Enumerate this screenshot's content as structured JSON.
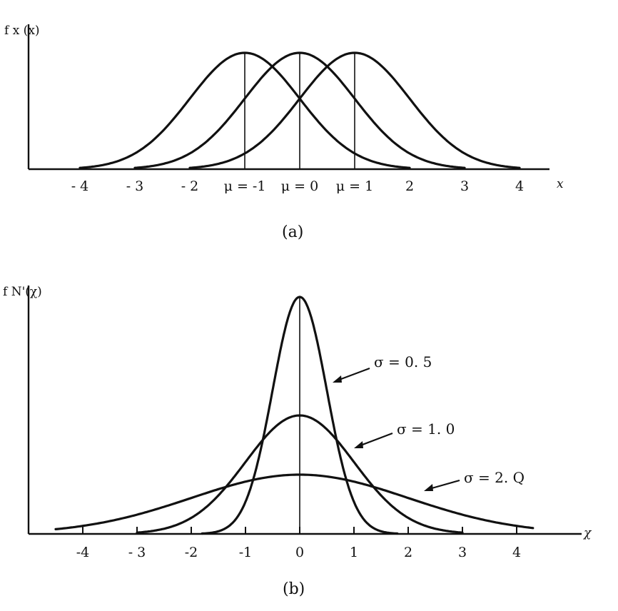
{
  "chart_data": [
    {
      "type": "line",
      "caption": "(a)",
      "ylabel": "f x (x)",
      "xlabel": "x",
      "xlim": [
        -4,
        4
      ],
      "x_tick_labels": [
        {
          "value": -4,
          "label": "- 4"
        },
        {
          "value": -3,
          "label": "- 3"
        },
        {
          "value": -2,
          "label": "- 2"
        },
        {
          "value": -1,
          "label": "μ = -1"
        },
        {
          "value": 0,
          "label": "μ = 0"
        },
        {
          "value": 1,
          "label": "μ = 1"
        },
        {
          "value": 2,
          "label": "2"
        },
        {
          "value": 3,
          "label": "3"
        },
        {
          "value": 4,
          "label": "4"
        }
      ],
      "series": [
        {
          "mu": -1,
          "sigma": 1,
          "x_range": [
            -4,
            2
          ]
        },
        {
          "mu": 0,
          "sigma": 1,
          "x_range": [
            -3,
            3
          ]
        },
        {
          "mu": 1,
          "sigma": 1,
          "x_range": [
            -2,
            4
          ]
        }
      ],
      "mean_lines": [
        -1,
        0,
        1
      ]
    },
    {
      "type": "line",
      "caption": "(b)",
      "ylabel": "f N'(χ)",
      "xlabel": "χ",
      "xlim": [
        -4.5,
        4.3
      ],
      "x_tick_labels": [
        {
          "value": -4,
          "label": "-4"
        },
        {
          "value": -3,
          "label": "- 3"
        },
        {
          "value": -2,
          "label": "-2"
        },
        {
          "value": -1,
          "label": "-1"
        },
        {
          "value": 0,
          "label": "0"
        },
        {
          "value": 1,
          "label": "1"
        },
        {
          "value": 2,
          "label": "2"
        },
        {
          "value": 3,
          "label": "3"
        },
        {
          "value": 4,
          "label": "4"
        }
      ],
      "series": [
        {
          "name": "σ = 0. 5",
          "mu": 0,
          "sigma": 0.5,
          "x_range": [
            -1.8,
            1.8
          ]
        },
        {
          "name": "σ = 1. 0",
          "mu": 0,
          "sigma": 1.0,
          "x_range": [
            -3.0,
            3.0
          ]
        },
        {
          "name": "σ = 2. Q",
          "mu": 0,
          "sigma": 2.0,
          "x_range": [
            -4.5,
            4.3
          ]
        }
      ]
    }
  ]
}
